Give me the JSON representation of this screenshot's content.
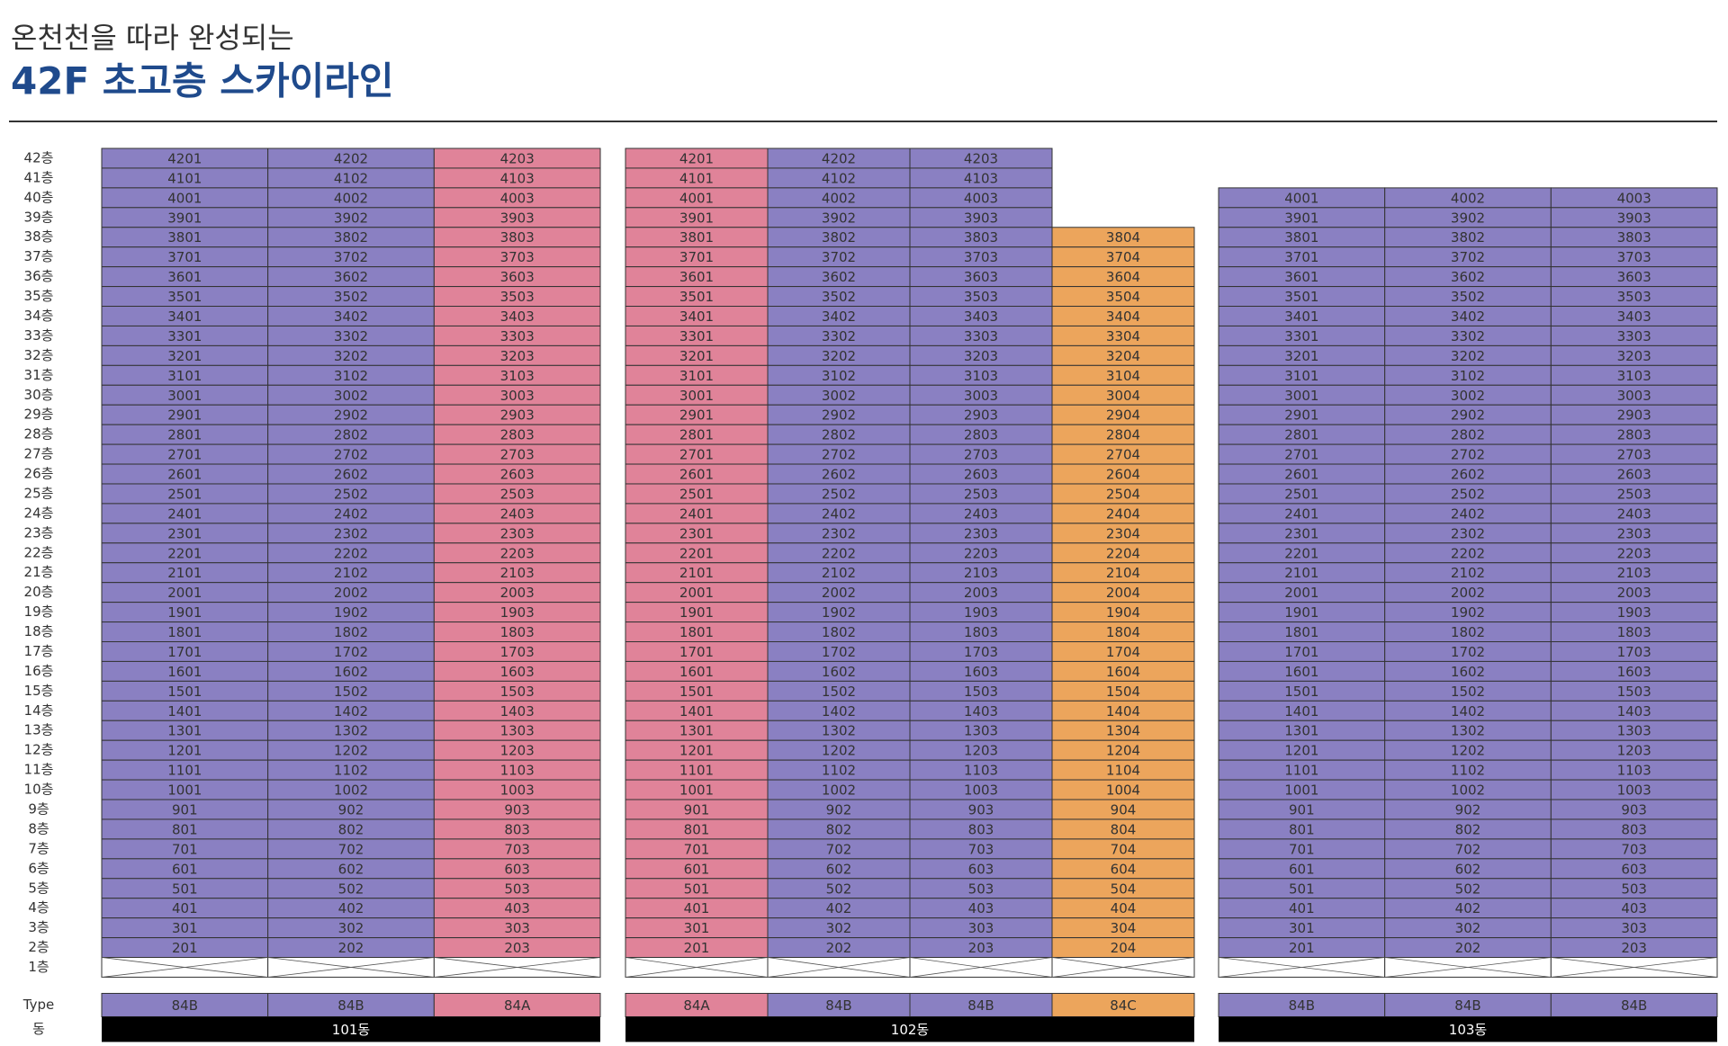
{
  "header": {
    "subtitle": "온천천을 따라 완성되는",
    "title": "42F 초고층 스카이라인"
  },
  "floor_labels": [
    "42층",
    "41층",
    "40층",
    "39층",
    "38층",
    "37층",
    "36층",
    "35층",
    "34층",
    "33층",
    "32층",
    "31층",
    "30층",
    "29층",
    "28층",
    "27층",
    "26층",
    "25층",
    "24층",
    "23층",
    "22층",
    "21층",
    "20층",
    "19층",
    "18층",
    "17층",
    "16층",
    "15층",
    "14층",
    "13층",
    "12층",
    "11층",
    "10층",
    "9층",
    "8층",
    "7층",
    "6층",
    "5층",
    "4층",
    "3층",
    "2층",
    "1층"
  ],
  "type_label": "Type",
  "building_label": "동",
  "buildings": [
    {
      "name": "101동",
      "columns": [
        {
          "type": "84B",
          "color": "#8a80c2"
        },
        {
          "type": "84B",
          "color": "#8a80c2"
        },
        {
          "type": "84A",
          "color": "#e08399"
        }
      ],
      "rows": [
        [
          "4201",
          "4202",
          "4203"
        ],
        [
          "4101",
          "4102",
          "4103"
        ],
        [
          "4001",
          "4002",
          "4003"
        ],
        [
          "3901",
          "3902",
          "3903"
        ],
        [
          "3801",
          "3802",
          "3803"
        ],
        [
          "3701",
          "3702",
          "3703"
        ],
        [
          "3601",
          "3602",
          "3603"
        ],
        [
          "3501",
          "3502",
          "3503"
        ],
        [
          "3401",
          "3402",
          "3403"
        ],
        [
          "3301",
          "3302",
          "3303"
        ],
        [
          "3201",
          "3202",
          "3203"
        ],
        [
          "3101",
          "3102",
          "3103"
        ],
        [
          "3001",
          "3002",
          "3003"
        ],
        [
          "2901",
          "2902",
          "2903"
        ],
        [
          "2801",
          "2802",
          "2803"
        ],
        [
          "2701",
          "2702",
          "2703"
        ],
        [
          "2601",
          "2602",
          "2603"
        ],
        [
          "2501",
          "2502",
          "2503"
        ],
        [
          "2401",
          "2402",
          "2403"
        ],
        [
          "2301",
          "2302",
          "2303"
        ],
        [
          "2201",
          "2202",
          "2203"
        ],
        [
          "2101",
          "2102",
          "2103"
        ],
        [
          "2001",
          "2002",
          "2003"
        ],
        [
          "1901",
          "1902",
          "1903"
        ],
        [
          "1801",
          "1802",
          "1803"
        ],
        [
          "1701",
          "1702",
          "1703"
        ],
        [
          "1601",
          "1602",
          "1603"
        ],
        [
          "1501",
          "1502",
          "1503"
        ],
        [
          "1401",
          "1402",
          "1403"
        ],
        [
          "1301",
          "1302",
          "1303"
        ],
        [
          "1201",
          "1202",
          "1203"
        ],
        [
          "1101",
          "1102",
          "1103"
        ],
        [
          "1001",
          "1002",
          "1003"
        ],
        [
          "901",
          "902",
          "903"
        ],
        [
          "801",
          "802",
          "803"
        ],
        [
          "701",
          "702",
          "703"
        ],
        [
          "601",
          "602",
          "603"
        ],
        [
          "501",
          "502",
          "503"
        ],
        [
          "401",
          "402",
          "403"
        ],
        [
          "301",
          "302",
          "303"
        ],
        [
          "201",
          "202",
          "203"
        ]
      ]
    },
    {
      "name": "102동",
      "columns": [
        {
          "type": "84A",
          "color": "#e08399"
        },
        {
          "type": "84B",
          "color": "#8a80c2"
        },
        {
          "type": "84B",
          "color": "#8a80c2"
        },
        {
          "type": "84C",
          "color": "#eca55c"
        }
      ],
      "rows": [
        [
          "4201",
          "4202",
          "4203",
          null
        ],
        [
          "4101",
          "4102",
          "4103",
          null
        ],
        [
          "4001",
          "4002",
          "4003",
          null
        ],
        [
          "3901",
          "3902",
          "3903",
          null
        ],
        [
          "3801",
          "3802",
          "3803",
          "3804"
        ],
        [
          "3701",
          "3702",
          "3703",
          "3704"
        ],
        [
          "3601",
          "3602",
          "3603",
          "3604"
        ],
        [
          "3501",
          "3502",
          "3503",
          "3504"
        ],
        [
          "3401",
          "3402",
          "3403",
          "3404"
        ],
        [
          "3301",
          "3302",
          "3303",
          "3304"
        ],
        [
          "3201",
          "3202",
          "3203",
          "3204"
        ],
        [
          "3101",
          "3102",
          "3103",
          "3104"
        ],
        [
          "3001",
          "3002",
          "3003",
          "3004"
        ],
        [
          "2901",
          "2902",
          "2903",
          "2904"
        ],
        [
          "2801",
          "2802",
          "2803",
          "2804"
        ],
        [
          "2701",
          "2702",
          "2703",
          "2704"
        ],
        [
          "2601",
          "2602",
          "2603",
          "2604"
        ],
        [
          "2501",
          "2502",
          "2503",
          "2504"
        ],
        [
          "2401",
          "2402",
          "2403",
          "2404"
        ],
        [
          "2301",
          "2302",
          "2303",
          "2304"
        ],
        [
          "2201",
          "2202",
          "2203",
          "2204"
        ],
        [
          "2101",
          "2102",
          "2103",
          "2104"
        ],
        [
          "2001",
          "2002",
          "2003",
          "2004"
        ],
        [
          "1901",
          "1902",
          "1903",
          "1904"
        ],
        [
          "1801",
          "1802",
          "1803",
          "1804"
        ],
        [
          "1701",
          "1702",
          "1703",
          "1704"
        ],
        [
          "1601",
          "1602",
          "1603",
          "1604"
        ],
        [
          "1501",
          "1502",
          "1503",
          "1504"
        ],
        [
          "1401",
          "1402",
          "1403",
          "1404"
        ],
        [
          "1301",
          "1302",
          "1303",
          "1304"
        ],
        [
          "1201",
          "1202",
          "1203",
          "1204"
        ],
        [
          "1101",
          "1102",
          "1103",
          "1104"
        ],
        [
          "1001",
          "1002",
          "1003",
          "1004"
        ],
        [
          "901",
          "902",
          "903",
          "904"
        ],
        [
          "801",
          "802",
          "803",
          "804"
        ],
        [
          "701",
          "702",
          "703",
          "704"
        ],
        [
          "601",
          "602",
          "603",
          "604"
        ],
        [
          "501",
          "502",
          "503",
          "504"
        ],
        [
          "401",
          "402",
          "403",
          "404"
        ],
        [
          "301",
          "302",
          "303",
          "304"
        ],
        [
          "201",
          "202",
          "203",
          "204"
        ]
      ]
    },
    {
      "name": "103동",
      "columns": [
        {
          "type": "84B",
          "color": "#8a80c2"
        },
        {
          "type": "84B",
          "color": "#8a80c2"
        },
        {
          "type": "84B",
          "color": "#8a80c2"
        }
      ],
      "rows": [
        [
          "4001",
          "4002",
          "4003"
        ],
        [
          "3901",
          "3902",
          "3903"
        ],
        [
          "3801",
          "3802",
          "3803"
        ],
        [
          "3701",
          "3702",
          "3703"
        ],
        [
          "3601",
          "3602",
          "3603"
        ],
        [
          "3501",
          "3502",
          "3503"
        ],
        [
          "3401",
          "3402",
          "3403"
        ],
        [
          "3301",
          "3302",
          "3303"
        ],
        [
          "3201",
          "3202",
          "3203"
        ],
        [
          "3101",
          "3102",
          "3103"
        ],
        [
          "3001",
          "3002",
          "3003"
        ],
        [
          "2901",
          "2902",
          "2903"
        ],
        [
          "2801",
          "2802",
          "2803"
        ],
        [
          "2701",
          "2702",
          "2703"
        ],
        [
          "2601",
          "2602",
          "2603"
        ],
        [
          "2501",
          "2502",
          "2503"
        ],
        [
          "2401",
          "2402",
          "2403"
        ],
        [
          "2301",
          "2302",
          "2303"
        ],
        [
          "2201",
          "2202",
          "2203"
        ],
        [
          "2101",
          "2102",
          "2103"
        ],
        [
          "2001",
          "2002",
          "2003"
        ],
        [
          "1901",
          "1902",
          "1903"
        ],
        [
          "1801",
          "1802",
          "1803"
        ],
        [
          "1701",
          "1702",
          "1703"
        ],
        [
          "1601",
          "1602",
          "1603"
        ],
        [
          "1501",
          "1502",
          "1503"
        ],
        [
          "1401",
          "1402",
          "1403"
        ],
        [
          "1301",
          "1302",
          "1303"
        ],
        [
          "1201",
          "1202",
          "1203"
        ],
        [
          "1101",
          "1102",
          "1103"
        ],
        [
          "1001",
          "1002",
          "1003"
        ],
        [
          "901",
          "902",
          "903"
        ],
        [
          "801",
          "802",
          "803"
        ],
        [
          "701",
          "702",
          "703"
        ],
        [
          "601",
          "602",
          "603"
        ],
        [
          "501",
          "502",
          "503"
        ],
        [
          "401",
          "402",
          "403"
        ],
        [
          "301",
          "302",
          "303"
        ],
        [
          "201",
          "202",
          "203"
        ]
      ]
    }
  ]
}
